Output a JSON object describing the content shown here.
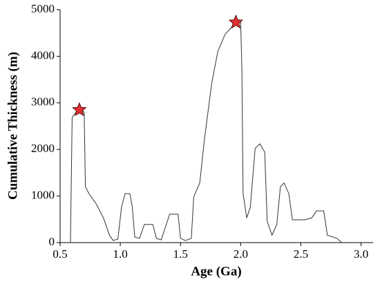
{
  "chart_data": {
    "type": "line",
    "xlabel": "Age (Ga)",
    "ylabel": "Cumulative Thickness (m)",
    "xlim": [
      0.5,
      3.1
    ],
    "ylim": [
      0,
      5000
    ],
    "xticks": [
      {
        "value": 0.5,
        "label": "0.5"
      },
      {
        "value": 1.0,
        "label": "1.0"
      },
      {
        "value": 1.5,
        "label": "1.5"
      },
      {
        "value": 2.0,
        "label": "2.0"
      },
      {
        "value": 2.5,
        "label": "2.5"
      },
      {
        "value": 3.0,
        "label": "3.0"
      }
    ],
    "yticks": [
      0,
      1000,
      2000,
      3000,
      4000,
      5000
    ],
    "color": "#333333",
    "x": [
      0.586,
      0.6,
      0.62,
      0.66,
      0.7,
      0.71,
      0.74,
      0.8,
      0.86,
      0.91,
      0.94,
      0.98,
      1.01,
      1.04,
      1.08,
      1.1,
      1.12,
      1.16,
      1.2,
      1.27,
      1.3,
      1.34,
      1.4,
      1.41,
      1.48,
      1.5,
      1.54,
      1.59,
      1.61,
      1.66,
      1.7,
      1.76,
      1.81,
      1.87,
      1.93,
      1.96,
      2.0,
      2.01,
      2.02,
      2.05,
      2.08,
      2.12,
      2.16,
      2.2,
      2.22,
      2.26,
      2.3,
      2.33,
      2.36,
      2.4,
      2.43,
      2.53,
      2.59,
      2.63,
      2.69,
      2.72,
      2.8,
      2.84
    ],
    "values": [
      0,
      2685,
      2760,
      2880,
      2800,
      1200,
      1050,
      830,
      530,
      160,
      45,
      75,
      760,
      1050,
      1050,
      760,
      120,
      90,
      390,
      390,
      90,
      60,
      530,
      610,
      610,
      90,
      45,
      90,
      980,
      1280,
      2240,
      3430,
      4100,
      4470,
      4640,
      4730,
      4720,
      3720,
      1050,
      530,
      760,
      2020,
      2120,
      1940,
      460,
      160,
      390,
      1200,
      1280,
      1050,
      490,
      490,
      530,
      680,
      680,
      160,
      90,
      0
    ],
    "markers": {
      "color": "#e03030",
      "x": [
        0.66,
        1.96
      ],
      "values": [
        2850,
        4730
      ]
    }
  }
}
